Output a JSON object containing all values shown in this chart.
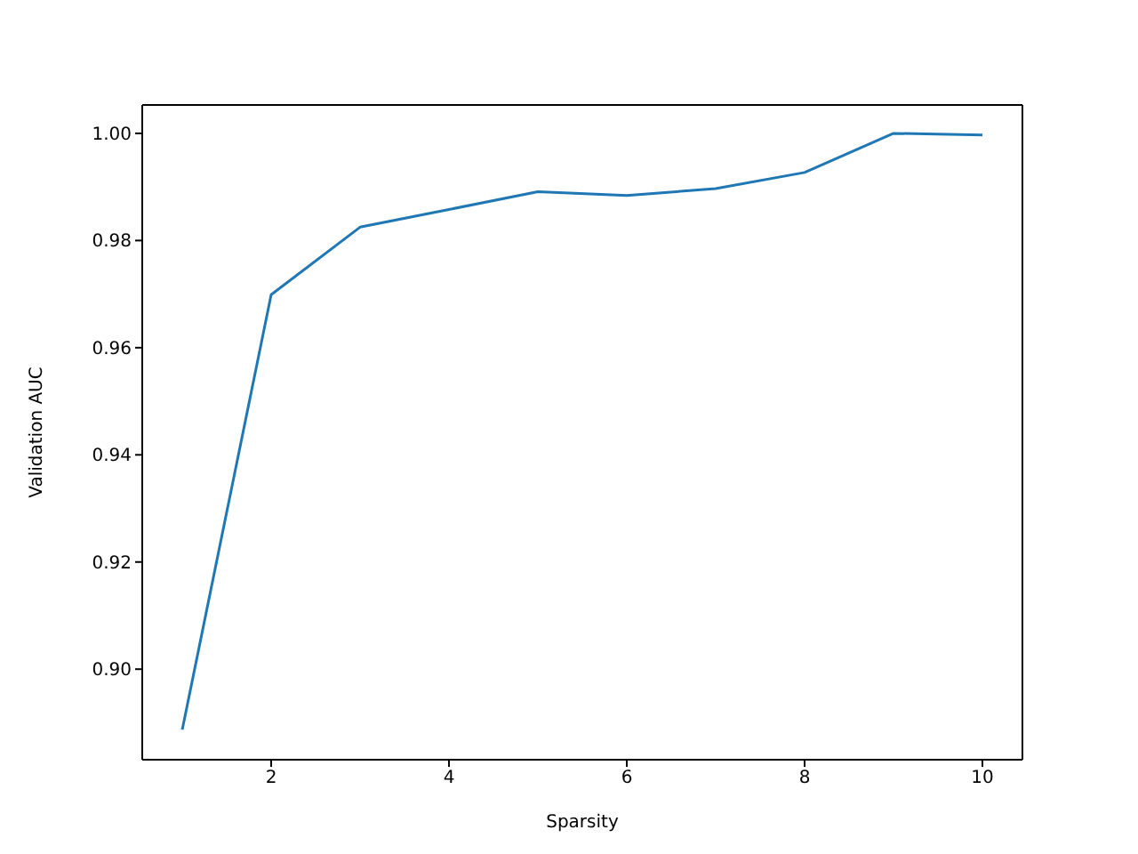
{
  "chart_data": {
    "type": "line",
    "xlabel": "Sparsity",
    "ylabel": "Validation AUC",
    "x": [
      1,
      2,
      3,
      4,
      5,
      6,
      7,
      8,
      9,
      10
    ],
    "series": [
      {
        "color": "#1f77b4",
        "values": [
          0.8887,
          0.9699,
          0.9825,
          0.9858,
          0.9891,
          0.9884,
          0.9897,
          0.9927,
          1.0,
          0.9997
        ]
      }
    ],
    "xlim": [
      0.55,
      10.45
    ],
    "ylim": [
      0.8831,
      1.0053
    ],
    "xticks": [
      2,
      4,
      6,
      8,
      10
    ],
    "yticks": [
      {
        "value": 0.9,
        "label": "0.90"
      },
      {
        "value": 0.92,
        "label": "0.92"
      },
      {
        "value": 0.94,
        "label": "0.94"
      },
      {
        "value": 0.96,
        "label": "0.96"
      },
      {
        "value": 0.98,
        "label": "0.98"
      },
      {
        "value": 1.0,
        "label": "1.00"
      }
    ],
    "grid": false,
    "legend": false,
    "marker": "none",
    "line_style": "solid"
  }
}
